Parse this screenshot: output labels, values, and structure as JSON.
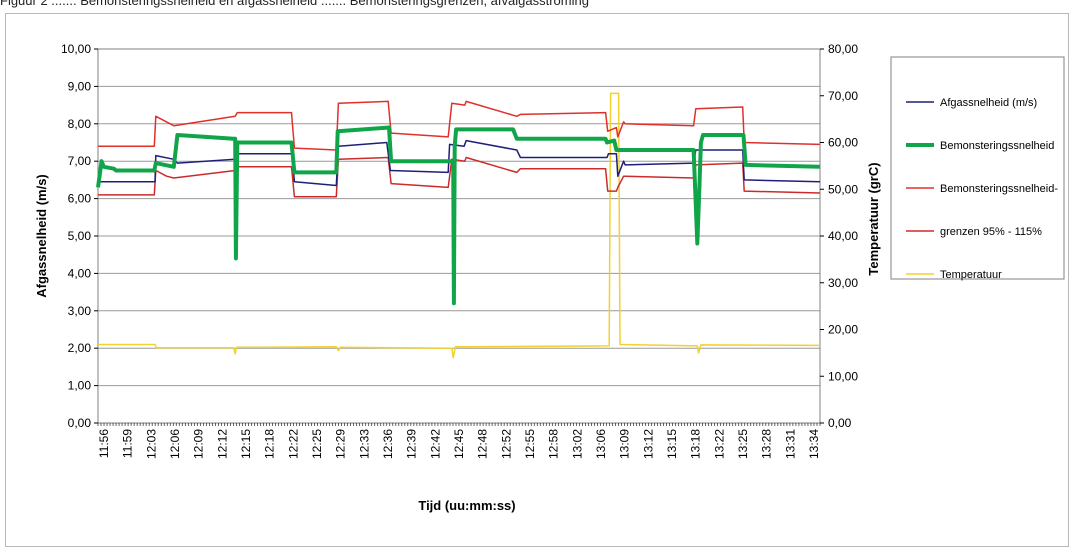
{
  "caption": "Figuur 2 ....... Bemonsteringssnelheid en afgassnelheid ....... Bemonsteringsgrenzen, afvalgasstroming",
  "chart_data": {
    "type": "line",
    "title": "",
    "xlabel": "Tijd (uu:mm:ss)",
    "ylabel": "Afgassnelheid (m/s)",
    "y2label": "Temperatuur (grC)",
    "ylim": [
      0,
      10
    ],
    "y2lim": [
      0,
      80
    ],
    "yticks": [
      "0,00",
      "1,00",
      "2,00",
      "3,00",
      "4,00",
      "5,00",
      "6,00",
      "7,00",
      "8,00",
      "9,00",
      "10,00"
    ],
    "y2ticks": [
      "0,00",
      "10,00",
      "20,00",
      "30,00",
      "40,00",
      "50,00",
      "60,00",
      "70,00",
      "80,00"
    ],
    "xlim": [
      0,
      100
    ],
    "xticks": [
      "11:56",
      "11:59",
      "12:03",
      "12:06",
      "12:09",
      "12:12",
      "12:15",
      "12:18",
      "12:22",
      "12:25",
      "12:29",
      "12:33",
      "12:36",
      "12:39",
      "12:42",
      "12:45",
      "12:48",
      "12:52",
      "12:55",
      "12:58",
      "13:02",
      "13:06",
      "13:09",
      "13:12",
      "13:15",
      "13:18",
      "13:22",
      "13:25",
      "13:28",
      "13:31",
      "13:34"
    ],
    "grid": "horizontal",
    "legend_position": "right",
    "legend": [
      {
        "label": "Afgassnelheid (m/s)",
        "color": "#1f1f7a",
        "width": 1.5
      },
      {
        "label": "Bemonsteringssnelheid",
        "color": "#11a54a",
        "width": 4
      },
      {
        "label": "Bemonsteringssnelheid-",
        "color": "#e0302a",
        "width": 1.5
      },
      {
        "label": "grenzen 95% - 115%",
        "color": "#cc2b2b",
        "width": 1.5
      },
      {
        "label": "Temperatuur",
        "color": "#f2d12e",
        "width": 1.5
      }
    ],
    "series": [
      {
        "name": "Afgassnelheid (m/s)",
        "axis": "left",
        "color": "#1f1f7a",
        "width": 1.5,
        "x": [
          0,
          7.9,
          8.0,
          10.5,
          11.0,
          19.0,
          19.2,
          26.9,
          27.2,
          33.0,
          33.3,
          40.0,
          40.5,
          48.5,
          48.7,
          50.7,
          51.0,
          58.0,
          58.5,
          70.5,
          70.7,
          71.8,
          72.0,
          72.8,
          73.0,
          82.5,
          82.8,
          89.3,
          89.5,
          100
        ],
        "y": [
          6.45,
          6.45,
          7.15,
          7.05,
          6.95,
          7.05,
          7.2,
          7.2,
          6.45,
          6.35,
          7.4,
          7.5,
          6.75,
          6.7,
          7.45,
          7.4,
          7.55,
          7.3,
          7.1,
          7.1,
          7.2,
          7.2,
          6.6,
          7.0,
          6.9,
          6.95,
          7.3,
          7.3,
          6.5,
          6.45
        ]
      },
      {
        "name": "Bemonsteringssnelheid",
        "axis": "left",
        "color": "#11a54a",
        "width": 4,
        "x": [
          0,
          0.5,
          0.8,
          2.2,
          2.5,
          7.8,
          8.0,
          10.5,
          11.0,
          18.8,
          19.0,
          19.1,
          19.3,
          19.4,
          26.8,
          27.2,
          33.0,
          33.2,
          40.3,
          40.6,
          49.2,
          49.3,
          49.4,
          49.6,
          57.5,
          58.0,
          70.3,
          70.5,
          71.5,
          71.8,
          82.5,
          82.7,
          83.0,
          83.3,
          83.5,
          83.8,
          89.4,
          89.7,
          100
        ],
        "y": [
          6.3,
          7.0,
          6.85,
          6.8,
          6.75,
          6.75,
          6.95,
          6.85,
          7.7,
          7.6,
          7.6,
          4.4,
          7.5,
          7.5,
          7.5,
          6.7,
          6.7,
          7.8,
          7.9,
          7.0,
          7.0,
          3.2,
          7.4,
          7.85,
          7.85,
          7.6,
          7.6,
          7.5,
          7.55,
          7.3,
          7.3,
          6.3,
          4.8,
          6.3,
          7.5,
          7.7,
          7.7,
          6.9,
          6.85
        ]
      },
      {
        "name": "Bemonsteringssnelheid-",
        "axis": "left",
        "color": "#e0302a",
        "width": 1.5,
        "x": [
          0,
          7.8,
          8.0,
          9.5,
          10.5,
          19.0,
          19.3,
          26.8,
          27.2,
          33.0,
          33.3,
          40.2,
          40.6,
          48.5,
          49.0,
          50.8,
          51.0,
          58.0,
          58.5,
          70.3,
          70.6,
          71.8,
          72.0,
          72.8,
          73.0,
          82.5,
          82.8,
          89.3,
          89.5,
          100
        ],
        "y": [
          7.4,
          7.4,
          8.2,
          8.05,
          7.95,
          8.2,
          8.3,
          8.3,
          7.35,
          7.3,
          8.55,
          8.6,
          7.75,
          7.65,
          8.55,
          8.5,
          8.6,
          8.2,
          8.25,
          8.3,
          7.8,
          7.9,
          7.65,
          8.05,
          8.0,
          7.95,
          8.4,
          8.45,
          7.5,
          7.45
        ]
      },
      {
        "name": "grenzen 95% - 115%",
        "axis": "left",
        "color": "#cc2b2b",
        "width": 1.5,
        "x": [
          0,
          7.8,
          8.0,
          9.5,
          10.5,
          19.0,
          19.3,
          26.8,
          27.2,
          33.0,
          33.3,
          40.2,
          40.6,
          48.5,
          49.0,
          50.8,
          51.0,
          58.0,
          58.5,
          70.3,
          70.6,
          71.8,
          72.0,
          72.8,
          73.0,
          82.5,
          82.8,
          89.3,
          89.5,
          100
        ],
        "y": [
          6.1,
          6.1,
          6.75,
          6.6,
          6.55,
          6.75,
          6.85,
          6.85,
          6.05,
          6.05,
          7.05,
          7.1,
          6.4,
          6.3,
          7.05,
          7.0,
          7.1,
          6.7,
          6.8,
          6.8,
          6.2,
          6.2,
          6.3,
          6.6,
          6.6,
          6.55,
          6.9,
          6.95,
          6.2,
          6.15
        ]
      },
      {
        "name": "Temperatuur",
        "axis": "right",
        "color": "#f2d12e",
        "width": 1.5,
        "x": [
          0,
          7.9,
          8.1,
          18.8,
          19.0,
          19.2,
          33.0,
          33.3,
          33.6,
          49.0,
          49.2,
          49.5,
          70.8,
          71.0,
          71.1,
          72.1,
          72.3,
          83.0,
          83.2,
          83.5,
          100
        ],
        "y": [
          16.8,
          16.8,
          16.1,
          16.1,
          14.8,
          16.2,
          16.3,
          15.5,
          16.2,
          16.0,
          14.0,
          16.3,
          16.5,
          70.5,
          70.5,
          70.5,
          16.8,
          16.5,
          15.0,
          16.7,
          16.6
        ]
      }
    ]
  }
}
